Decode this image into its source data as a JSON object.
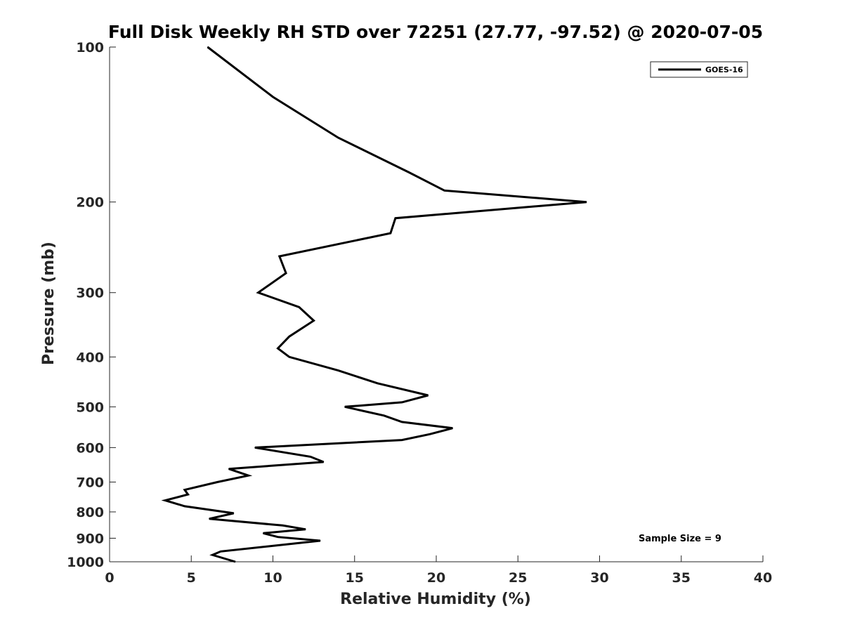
{
  "chart_data": {
    "type": "line",
    "title": "Full Disk Weekly RH STD over 72251 (27.77, -97.52) @ 2020-07-05",
    "xlabel": "Relative Humidity (%)",
    "ylabel": "Pressure (mb)",
    "xlim": [
      0,
      40
    ],
    "ylim": [
      100,
      1000
    ],
    "y_scale": "log",
    "y_reversed": true,
    "grid": false,
    "legend_position": "top-right",
    "x_ticks": [
      0,
      5,
      10,
      15,
      20,
      25,
      30,
      35,
      40
    ],
    "x_tick_labels": [
      "0",
      "5",
      "10",
      "15",
      "20",
      "25",
      "30",
      "35",
      "40"
    ],
    "y_ticks": [
      100,
      200,
      300,
      400,
      500,
      600,
      700,
      800,
      900,
      1000
    ],
    "y_tick_labels": [
      "100",
      "200",
      "300",
      "400",
      "500",
      "600",
      "700",
      "800",
      "900",
      "1000"
    ],
    "series": [
      {
        "name": "GOES-16",
        "color": "#000000",
        "points": [
          [
            6.0,
            100
          ],
          [
            10.0,
            125
          ],
          [
            14.0,
            150
          ],
          [
            18.3,
            175
          ],
          [
            20.5,
            190
          ],
          [
            29.2,
            200
          ],
          [
            17.5,
            215
          ],
          [
            17.2,
            230
          ],
          [
            10.4,
            255
          ],
          [
            10.8,
            275
          ],
          [
            9.1,
            300
          ],
          [
            11.6,
            320
          ],
          [
            12.5,
            340
          ],
          [
            11.0,
            365
          ],
          [
            10.3,
            385
          ],
          [
            11.0,
            400
          ],
          [
            14.0,
            425
          ],
          [
            16.4,
            450
          ],
          [
            19.5,
            475
          ],
          [
            17.9,
            490
          ],
          [
            14.4,
            500
          ],
          [
            16.8,
            520
          ],
          [
            17.9,
            535
          ],
          [
            21.0,
            550
          ],
          [
            19.6,
            565
          ],
          [
            17.9,
            580
          ],
          [
            8.9,
            600
          ],
          [
            12.3,
            625
          ],
          [
            13.1,
            640
          ],
          [
            7.3,
            660
          ],
          [
            8.5,
            680
          ],
          [
            6.6,
            700
          ],
          [
            4.6,
            725
          ],
          [
            4.8,
            740
          ],
          [
            3.4,
            760
          ],
          [
            4.6,
            780
          ],
          [
            7.6,
            805
          ],
          [
            6.1,
            825
          ],
          [
            10.6,
            850
          ],
          [
            12.0,
            865
          ],
          [
            9.4,
            880
          ],
          [
            10.3,
            895
          ],
          [
            12.9,
            910
          ],
          [
            6.8,
            955
          ],
          [
            6.3,
            970
          ],
          [
            7.7,
            1000
          ]
        ]
      }
    ],
    "annotation": "Sample Size = 9"
  }
}
